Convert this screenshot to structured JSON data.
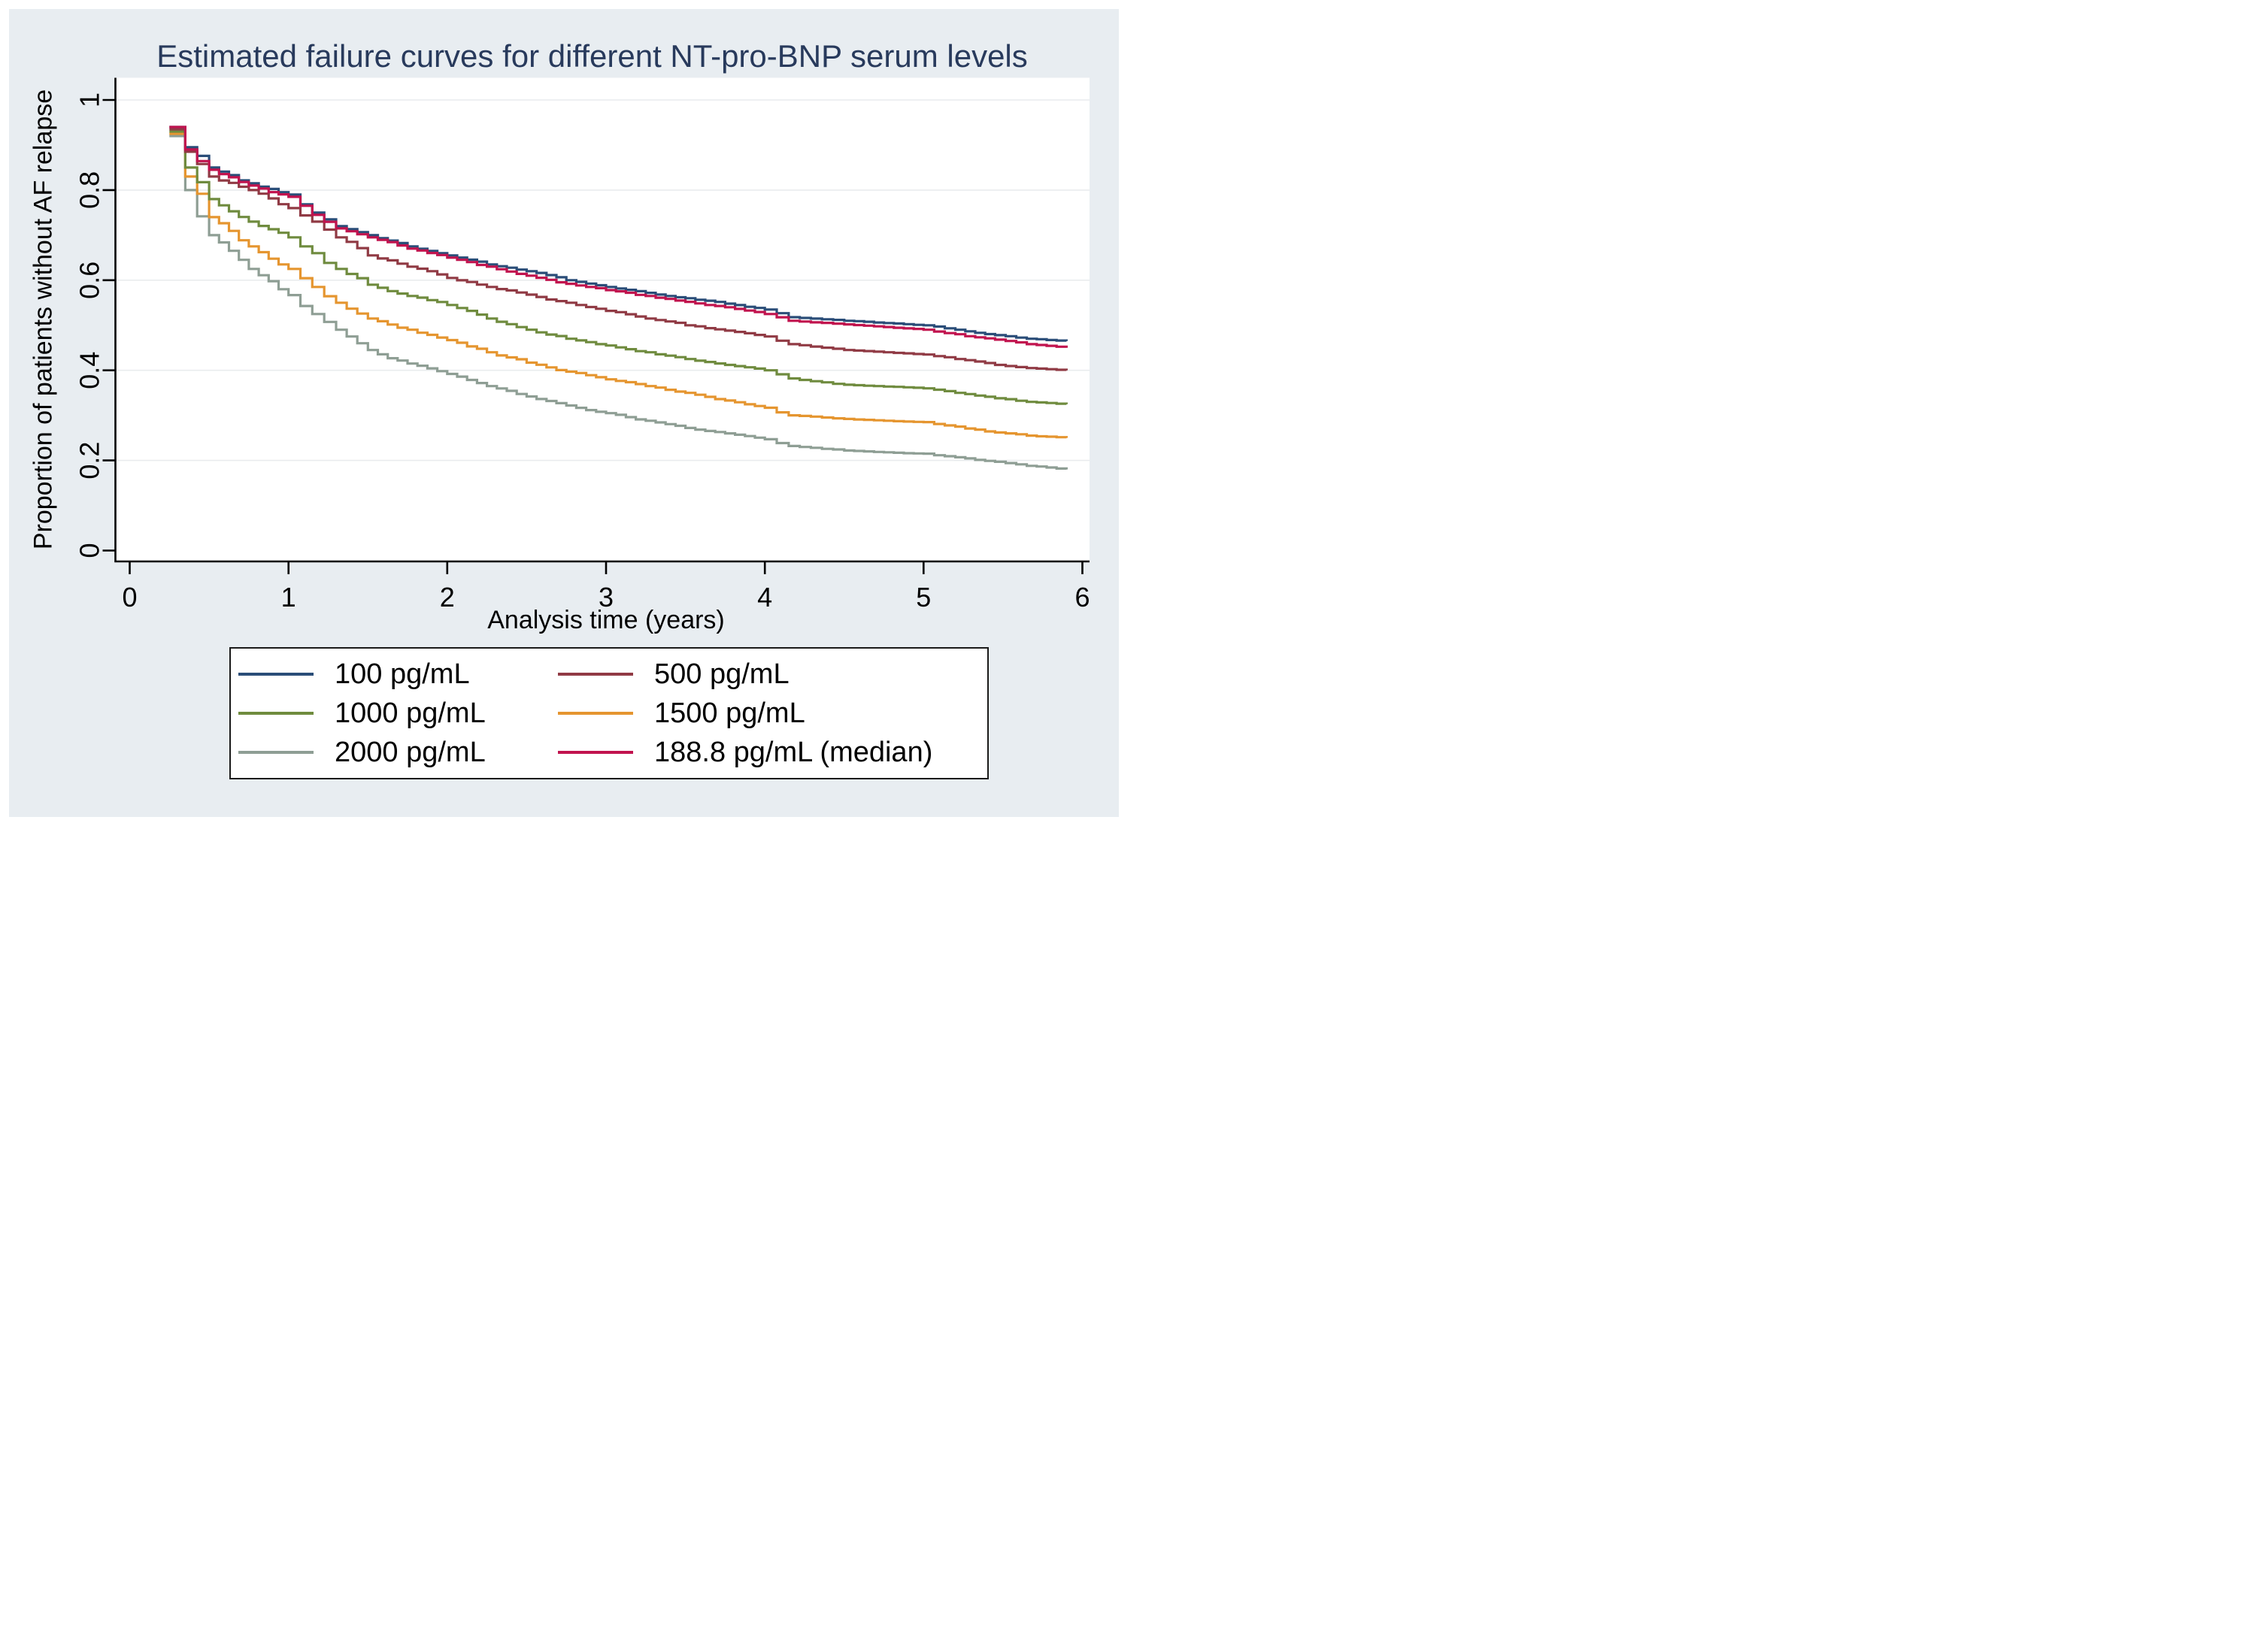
{
  "figure": {
    "title_color": "#283a5c",
    "background": "#e8edf1",
    "plot_background": "#ffffff",
    "outer_background": "#ffffff"
  },
  "legend": {
    "background": "#ffffff",
    "border_color": "#1a1a1a"
  },
  "chart_data": {
    "type": "line",
    "subtype": "kaplan-meier-failure-step",
    "title": "Estimated failure curves for different NT-pro-BNP serum levels",
    "xlabel": "Analysis time (years)",
    "ylabel": "Proportion of patients without AF relapse",
    "xlim": [
      0,
      6.05
    ],
    "ylim": [
      0,
      1
    ],
    "grid": "horizontal",
    "gridline_color": "#e9ecee",
    "axis_color": "#000000",
    "legend_position": "bottom",
    "x_ticks": {
      "values": [
        0,
        1,
        2,
        3,
        4,
        5,
        6
      ],
      "labels": [
        "0",
        "1",
        "2",
        "3",
        "4",
        "5",
        "6"
      ]
    },
    "y_ticks": {
      "values": [
        0,
        0.2,
        0.4,
        0.6,
        0.8,
        1
      ],
      "labels": [
        "0",
        "0.2",
        "0.4",
        "0.6",
        "0.8",
        "1"
      ]
    },
    "draw_order": [
      4,
      3,
      2,
      1,
      0,
      5
    ],
    "series": [
      {
        "id": "100",
        "label": "100 pg/mL",
        "color": "#2a4d78",
        "points": [
          [
            0.25,
            0.94
          ],
          [
            0.35,
            0.895
          ],
          [
            0.5,
            0.85
          ],
          [
            0.75,
            0.815
          ],
          [
            1,
            0.79
          ],
          [
            1.15,
            0.75
          ],
          [
            1.3,
            0.72
          ],
          [
            1.5,
            0.7
          ],
          [
            1.75,
            0.675
          ],
          [
            2,
            0.655
          ],
          [
            2.25,
            0.635
          ],
          [
            2.5,
            0.62
          ],
          [
            2.75,
            0.6
          ],
          [
            3,
            0.585
          ],
          [
            3.25,
            0.572
          ],
          [
            3.5,
            0.56
          ],
          [
            3.75,
            0.548
          ],
          [
            4,
            0.535
          ],
          [
            4.15,
            0.518
          ],
          [
            4.5,
            0.51
          ],
          [
            4.75,
            0.505
          ],
          [
            5,
            0.5
          ],
          [
            5.2,
            0.49
          ],
          [
            5.45,
            0.478
          ],
          [
            5.65,
            0.47
          ],
          [
            5.9,
            0.465
          ]
        ]
      },
      {
        "id": "500",
        "label": "500 pg/mL",
        "color": "#903a44",
        "points": [
          [
            0.25,
            0.935
          ],
          [
            0.35,
            0.885
          ],
          [
            0.5,
            0.83
          ],
          [
            0.75,
            0.8
          ],
          [
            1,
            0.76
          ],
          [
            1.15,
            0.73
          ],
          [
            1.3,
            0.695
          ],
          [
            1.5,
            0.655
          ],
          [
            1.75,
            0.63
          ],
          [
            2,
            0.605
          ],
          [
            2.25,
            0.585
          ],
          [
            2.5,
            0.568
          ],
          [
            2.75,
            0.55
          ],
          [
            3,
            0.532
          ],
          [
            3.25,
            0.515
          ],
          [
            3.5,
            0.5
          ],
          [
            3.75,
            0.488
          ],
          [
            4,
            0.475
          ],
          [
            4.15,
            0.458
          ],
          [
            4.5,
            0.445
          ],
          [
            4.75,
            0.44
          ],
          [
            5,
            0.435
          ],
          [
            5.2,
            0.425
          ],
          [
            5.45,
            0.412
          ],
          [
            5.65,
            0.405
          ],
          [
            5.9,
            0.4
          ]
        ]
      },
      {
        "id": "1000",
        "label": "1000 pg/mL",
        "color": "#6f8b3e",
        "points": [
          [
            0.25,
            0.93
          ],
          [
            0.35,
            0.85
          ],
          [
            0.5,
            0.78
          ],
          [
            0.75,
            0.73
          ],
          [
            1,
            0.695
          ],
          [
            1.15,
            0.66
          ],
          [
            1.3,
            0.625
          ],
          [
            1.5,
            0.59
          ],
          [
            1.75,
            0.565
          ],
          [
            2,
            0.545
          ],
          [
            2.25,
            0.515
          ],
          [
            2.5,
            0.49
          ],
          [
            2.75,
            0.47
          ],
          [
            3,
            0.455
          ],
          [
            3.25,
            0.44
          ],
          [
            3.5,
            0.425
          ],
          [
            3.75,
            0.412
          ],
          [
            4,
            0.4
          ],
          [
            4.15,
            0.382
          ],
          [
            4.5,
            0.368
          ],
          [
            4.75,
            0.364
          ],
          [
            5,
            0.36
          ],
          [
            5.2,
            0.35
          ],
          [
            5.45,
            0.338
          ],
          [
            5.65,
            0.33
          ],
          [
            5.9,
            0.325
          ]
        ]
      },
      {
        "id": "1500",
        "label": "1500 pg/mL",
        "color": "#e5952f",
        "points": [
          [
            0.25,
            0.925
          ],
          [
            0.35,
            0.83
          ],
          [
            0.5,
            0.74
          ],
          [
            0.75,
            0.675
          ],
          [
            1,
            0.625
          ],
          [
            1.15,
            0.585
          ],
          [
            1.3,
            0.55
          ],
          [
            1.5,
            0.515
          ],
          [
            1.75,
            0.49
          ],
          [
            2,
            0.467
          ],
          [
            2.25,
            0.44
          ],
          [
            2.5,
            0.417
          ],
          [
            2.75,
            0.397
          ],
          [
            3,
            0.38
          ],
          [
            3.25,
            0.365
          ],
          [
            3.5,
            0.35
          ],
          [
            3.75,
            0.333
          ],
          [
            4,
            0.317
          ],
          [
            4.15,
            0.3
          ],
          [
            4.5,
            0.292
          ],
          [
            4.75,
            0.288
          ],
          [
            5,
            0.285
          ],
          [
            5.2,
            0.275
          ],
          [
            5.45,
            0.262
          ],
          [
            5.65,
            0.255
          ],
          [
            5.9,
            0.25
          ]
        ]
      },
      {
        "id": "2000",
        "label": "2000 pg/mL",
        "color": "#8e9e94",
        "points": [
          [
            0.25,
            0.92
          ],
          [
            0.35,
            0.8
          ],
          [
            0.5,
            0.7
          ],
          [
            0.75,
            0.625
          ],
          [
            1,
            0.567
          ],
          [
            1.15,
            0.525
          ],
          [
            1.3,
            0.49
          ],
          [
            1.5,
            0.445
          ],
          [
            1.75,
            0.415
          ],
          [
            2,
            0.392
          ],
          [
            2.25,
            0.365
          ],
          [
            2.5,
            0.342
          ],
          [
            2.75,
            0.322
          ],
          [
            3,
            0.305
          ],
          [
            3.25,
            0.288
          ],
          [
            3.5,
            0.272
          ],
          [
            3.75,
            0.26
          ],
          [
            4,
            0.247
          ],
          [
            4.15,
            0.232
          ],
          [
            4.5,
            0.222
          ],
          [
            4.75,
            0.218
          ],
          [
            5,
            0.215
          ],
          [
            5.2,
            0.207
          ],
          [
            5.45,
            0.197
          ],
          [
            5.65,
            0.188
          ],
          [
            5.9,
            0.18
          ]
        ]
      },
      {
        "id": "median-188-8",
        "label": "188.8 pg/mL (median)",
        "color": "#c1134e",
        "points": [
          [
            0.25,
            0.94
          ],
          [
            0.35,
            0.89
          ],
          [
            0.5,
            0.845
          ],
          [
            0.75,
            0.81
          ],
          [
            1,
            0.785
          ],
          [
            1.15,
            0.745
          ],
          [
            1.3,
            0.715
          ],
          [
            1.5,
            0.695
          ],
          [
            1.75,
            0.67
          ],
          [
            2,
            0.65
          ],
          [
            2.25,
            0.63
          ],
          [
            2.5,
            0.61
          ],
          [
            2.75,
            0.592
          ],
          [
            3,
            0.578
          ],
          [
            3.25,
            0.565
          ],
          [
            3.5,
            0.552
          ],
          [
            3.75,
            0.54
          ],
          [
            4,
            0.525
          ],
          [
            4.15,
            0.51
          ],
          [
            4.5,
            0.502
          ],
          [
            4.75,
            0.496
          ],
          [
            5,
            0.49
          ],
          [
            5.2,
            0.48
          ],
          [
            5.45,
            0.468
          ],
          [
            5.65,
            0.458
          ],
          [
            5.9,
            0.45
          ]
        ]
      }
    ]
  }
}
